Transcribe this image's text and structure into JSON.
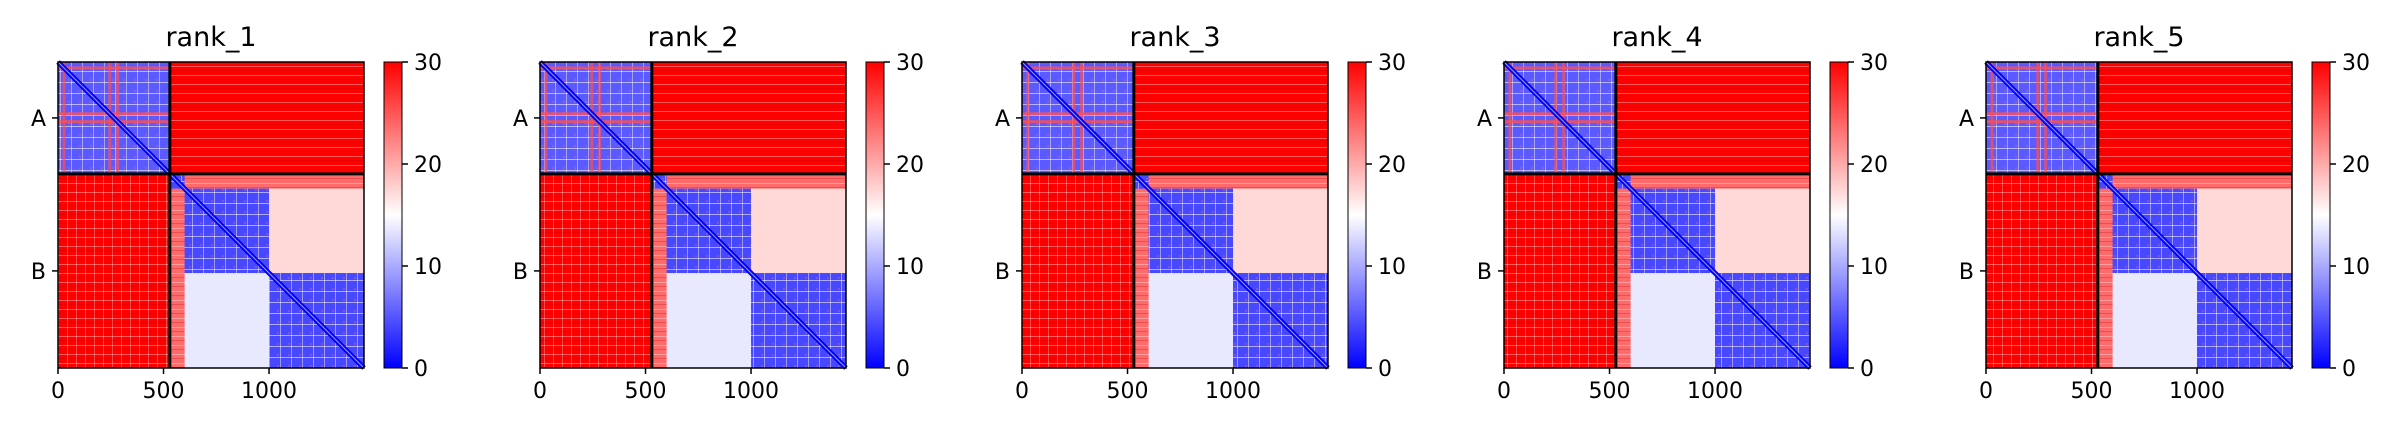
{
  "figure": {
    "colormap": {
      "low": "#0000ff",
      "mid": "#ffffff",
      "high": "#ff0000"
    }
  },
  "chart_data": [
    {
      "type": "heatmap",
      "title": "rank_1",
      "x_ticks": [
        0,
        500,
        1000
      ],
      "y_tick_labels": [
        "A",
        "B"
      ],
      "chain_boundary": 530,
      "length": 1450,
      "colorbar_ticks": [
        0,
        10,
        20,
        30
      ],
      "vmin": 0,
      "vmax": 30
    },
    {
      "type": "heatmap",
      "title": "rank_2",
      "x_ticks": [
        0,
        500,
        1000
      ],
      "y_tick_labels": [
        "A",
        "B"
      ],
      "chain_boundary": 530,
      "length": 1450,
      "colorbar_ticks": [
        0,
        10,
        20,
        30
      ],
      "vmin": 0,
      "vmax": 30
    },
    {
      "type": "heatmap",
      "title": "rank_3",
      "x_ticks": [
        0,
        500,
        1000
      ],
      "y_tick_labels": [
        "A",
        "B"
      ],
      "chain_boundary": 530,
      "length": 1450,
      "colorbar_ticks": [
        0,
        10,
        20,
        30
      ],
      "vmin": 0,
      "vmax": 30
    },
    {
      "type": "heatmap",
      "title": "rank_4",
      "x_ticks": [
        0,
        500,
        1000
      ],
      "y_tick_labels": [
        "A",
        "B"
      ],
      "chain_boundary": 530,
      "length": 1450,
      "colorbar_ticks": [
        0,
        10,
        20,
        30
      ],
      "vmin": 0,
      "vmax": 30
    },
    {
      "type": "heatmap",
      "title": "rank_5",
      "x_ticks": [
        0,
        500,
        1000
      ],
      "y_tick_labels": [
        "A",
        "B"
      ],
      "chain_boundary": 530,
      "length": 1450,
      "colorbar_ticks": [
        0,
        10,
        20,
        30
      ],
      "vmin": 0,
      "vmax": 30
    }
  ]
}
